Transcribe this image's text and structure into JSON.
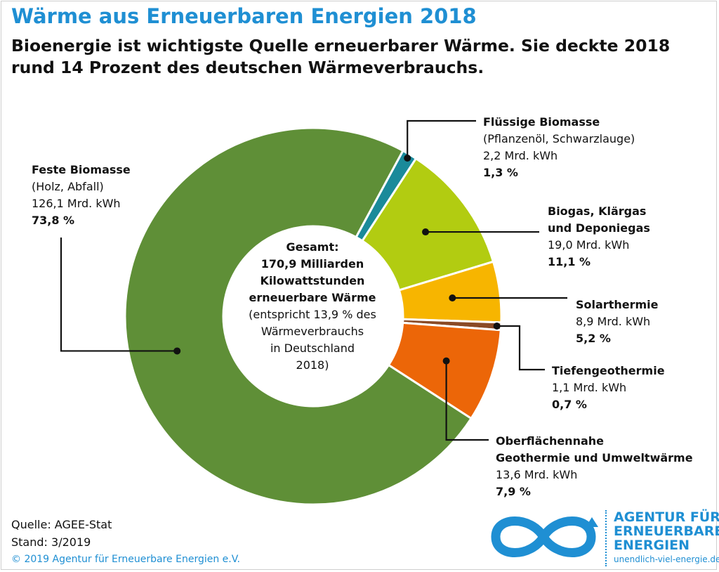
{
  "title": "Wärme aus Erneuerbaren Energien 2018",
  "subtitle_lines": [
    "Bioenergie ist wichtigste Quelle erneuerbarer Wärme. Sie deckte 2018",
    "rund 14 Prozent des deutschen Wärmeverbrauchs."
  ],
  "center_text": {
    "line1": "Gesamt:",
    "line2": "170,9 Milliarden",
    "line3": "Kilowattstunden",
    "line4": "erneuerbare Wärme",
    "line5": "(entspricht 13,9 % des",
    "line6": "Wärmeverbrauchs",
    "line7": "in Deutschland",
    "line8": "2018)"
  },
  "labels": {
    "feste": {
      "name": "Feste Biomasse",
      "detail": "(Holz, Abfall)",
      "amount": "126,1 Mrd. kWh",
      "pct": "73,8 %"
    },
    "fluessig": {
      "name": "Flüssige Biomasse",
      "detail": "(Pflanzenöl, Schwarzlauge)",
      "amount": "2,2 Mrd. kWh",
      "pct": "1,3 %"
    },
    "biogas": {
      "name1": "Biogas, Klärgas",
      "name2": "und Deponiegas",
      "amount": "19,0 Mrd. kWh",
      "pct": "11,1 %"
    },
    "solar": {
      "name": "Solarthermie",
      "amount": "8,9 Mrd. kWh",
      "pct": "5,2 %"
    },
    "tiefen": {
      "name": "Tiefengeothermie",
      "amount": "1,1 Mrd. kWh",
      "pct": "0,7 %"
    },
    "oberflaeche": {
      "name1": "Oberflächennahe",
      "name2": "Geothermie und Umweltwärme",
      "amount": "13,6 Mrd. kWh",
      "pct": "7,9 %"
    }
  },
  "source": {
    "line1": "Quelle: AGEE-Stat",
    "line2": "Stand: 3/2019"
  },
  "copyright": "© 2019 Agentur für Erneuerbare Energien e.V.",
  "logo": {
    "line1": "AGENTUR FÜR",
    "line2": "ERNEUERBARE",
    "line3": "ENERGIEN",
    "url": "unendlich-viel-energie.de",
    "icon": "infinity-icon"
  },
  "colors": {
    "title": "#1f8fd3",
    "feste": "#5f8f37",
    "fluessig": "#1a8a9a",
    "biogas": "#b2cc11",
    "solar": "#f7b500",
    "tiefen": "#8a4a25",
    "oberflaeche": "#ec6608",
    "brand": "#1f8fd3"
  },
  "chart_data": {
    "type": "pie",
    "categories": [
      "Flüssige Biomasse",
      "Biogas, Klärgas und Deponiegas",
      "Solarthermie",
      "Tiefengeothermie",
      "Oberflächennahe Geothermie und Umweltwärme",
      "Feste Biomasse"
    ],
    "values": [
      2.2,
      19.0,
      8.9,
      1.1,
      13.6,
      126.1
    ],
    "percent": [
      1.3,
      11.1,
      5.2,
      0.7,
      7.9,
      73.8
    ],
    "unit": "Mrd. kWh",
    "total": 170.9
  }
}
